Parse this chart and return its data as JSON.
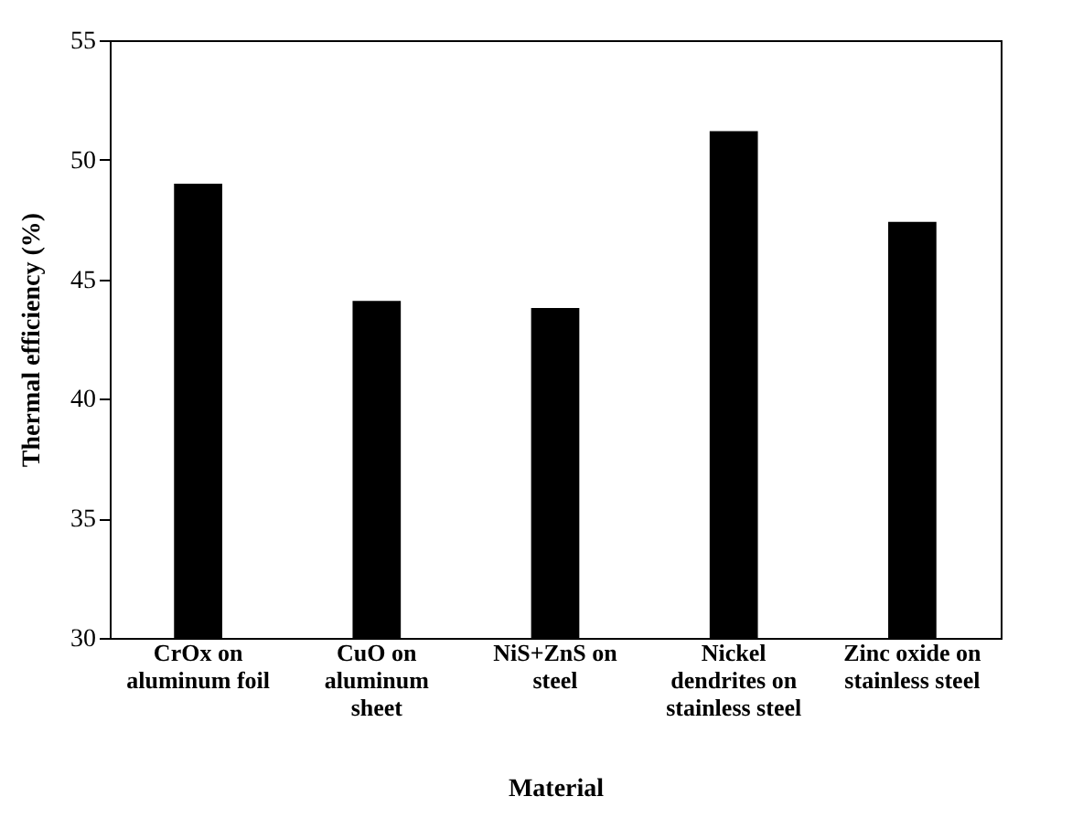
{
  "chart_data": {
    "type": "bar",
    "xlabel": "Material",
    "ylabel": "Thermal efficiency (%)",
    "categories": [
      "CrOx on aluminum foil",
      "CuO on aluminum sheet",
      "NiS+ZnS on steel",
      "Nickel dendrites on stainless steel",
      "Zinc oxide on stainless steel"
    ],
    "values": [
      49.0,
      44.1,
      43.8,
      51.2,
      47.4
    ],
    "color": "#000000",
    "ylim": [
      30,
      55
    ],
    "yticks": [
      30,
      35,
      40,
      45,
      50,
      55
    ],
    "grid": false
  }
}
